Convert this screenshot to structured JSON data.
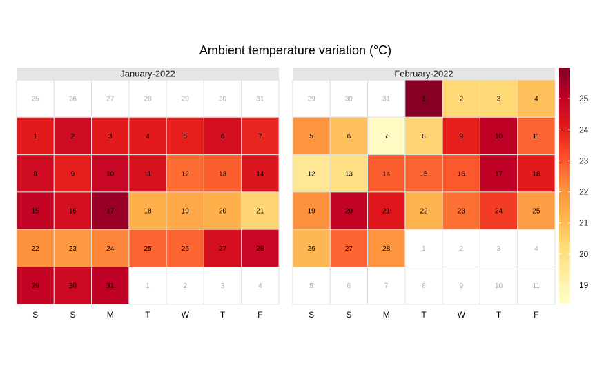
{
  "chart_data": {
    "type": "heatmap",
    "title": "Ambient temperature variation (°C)",
    "weekday_labels": [
      "S",
      "S",
      "M",
      "T",
      "W",
      "T",
      "F"
    ],
    "colorbar": {
      "ticks": [
        19,
        20,
        21,
        22,
        23,
        24,
        25
      ],
      "min": 18.4,
      "max": 26.0,
      "colors": [
        "#ffffcc",
        "#ffeda0",
        "#fed976",
        "#feb24c",
        "#fd8d3c",
        "#fc4e2a",
        "#e31a1c",
        "#bd0026",
        "#800026"
      ]
    },
    "panels": [
      {
        "title": "January-2022",
        "weeks": [
          [
            {
              "d": "25",
              "v": null
            },
            {
              "d": "26",
              "v": null
            },
            {
              "d": "27",
              "v": null
            },
            {
              "d": "28",
              "v": null
            },
            {
              "d": "29",
              "v": null
            },
            {
              "d": "30",
              "v": null
            },
            {
              "d": "31",
              "v": null
            }
          ],
          [
            {
              "d": "1",
              "v": 24.1
            },
            {
              "d": "2",
              "v": 24.6
            },
            {
              "d": "3",
              "v": 24.1
            },
            {
              "d": "4",
              "v": 24.1
            },
            {
              "d": "5",
              "v": 24.0
            },
            {
              "d": "6",
              "v": 24.5
            },
            {
              "d": "7",
              "v": 23.9
            }
          ],
          [
            {
              "d": "8",
              "v": 24.6
            },
            {
              "d": "9",
              "v": 24.0
            },
            {
              "d": "10",
              "v": 24.8
            },
            {
              "d": "11",
              "v": 24.4
            },
            {
              "d": "12",
              "v": 22.7
            },
            {
              "d": "13",
              "v": 22.9
            },
            {
              "d": "14",
              "v": 24.3
            }
          ],
          [
            {
              "d": "15",
              "v": 24.9
            },
            {
              "d": "16",
              "v": 24.5
            },
            {
              "d": "17",
              "v": 25.6
            },
            {
              "d": "18",
              "v": 21.3
            },
            {
              "d": "19",
              "v": 21.5
            },
            {
              "d": "20",
              "v": 21.3
            },
            {
              "d": "21",
              "v": 20.4
            }
          ],
          [
            {
              "d": "22",
              "v": 22.1
            },
            {
              "d": "23",
              "v": 21.9
            },
            {
              "d": "24",
              "v": 22.3
            },
            {
              "d": "25",
              "v": 22.8
            },
            {
              "d": "26",
              "v": 22.8
            },
            {
              "d": "27",
              "v": 24.5
            },
            {
              "d": "28",
              "v": 24.8
            }
          ],
          [
            {
              "d": "29",
              "v": 24.9
            },
            {
              "d": "30",
              "v": 24.7
            },
            {
              "d": "31",
              "v": 25.0
            },
            {
              "d": "1",
              "v": null
            },
            {
              "d": "2",
              "v": null
            },
            {
              "d": "3",
              "v": null
            },
            {
              "d": "4",
              "v": null
            }
          ]
        ]
      },
      {
        "title": "February-2022",
        "weeks": [
          [
            {
              "d": "29",
              "v": null
            },
            {
              "d": "30",
              "v": null
            },
            {
              "d": "31",
              "v": null
            },
            {
              "d": "1",
              "v": 25.9
            },
            {
              "d": "2",
              "v": 20.3
            },
            {
              "d": "3",
              "v": 20.3
            },
            {
              "d": "4",
              "v": 20.9
            }
          ],
          [
            {
              "d": "5",
              "v": 22.0
            },
            {
              "d": "6",
              "v": 20.9
            },
            {
              "d": "7",
              "v": 18.6
            },
            {
              "d": "8",
              "v": 20.4
            },
            {
              "d": "9",
              "v": 24.0
            },
            {
              "d": "10",
              "v": 25.0
            },
            {
              "d": "11",
              "v": 22.8
            }
          ],
          [
            {
              "d": "12",
              "v": 19.6
            },
            {
              "d": "13",
              "v": 20.0
            },
            {
              "d": "14",
              "v": 22.9
            },
            {
              "d": "15",
              "v": 22.8
            },
            {
              "d": "16",
              "v": 23.0
            },
            {
              "d": "17",
              "v": 25.0
            },
            {
              "d": "18",
              "v": 24.1
            }
          ],
          [
            {
              "d": "19",
              "v": 22.1
            },
            {
              "d": "20",
              "v": 24.9
            },
            {
              "d": "21",
              "v": 24.2
            },
            {
              "d": "22",
              "v": 21.2
            },
            {
              "d": "23",
              "v": 22.6
            },
            {
              "d": "24",
              "v": 23.5
            },
            {
              "d": "25",
              "v": 21.8
            }
          ],
          [
            {
              "d": "26",
              "v": 21.1
            },
            {
              "d": "27",
              "v": 22.8
            },
            {
              "d": "28",
              "v": 22.0
            },
            {
              "d": "1",
              "v": null
            },
            {
              "d": "2",
              "v": null
            },
            {
              "d": "3",
              "v": null
            },
            {
              "d": "4",
              "v": null
            }
          ],
          [
            {
              "d": "5",
              "v": null
            },
            {
              "d": "6",
              "v": null
            },
            {
              "d": "7",
              "v": null
            },
            {
              "d": "8",
              "v": null
            },
            {
              "d": "9",
              "v": null
            },
            {
              "d": "10",
              "v": null
            },
            {
              "d": "11",
              "v": null
            }
          ]
        ]
      }
    ]
  }
}
